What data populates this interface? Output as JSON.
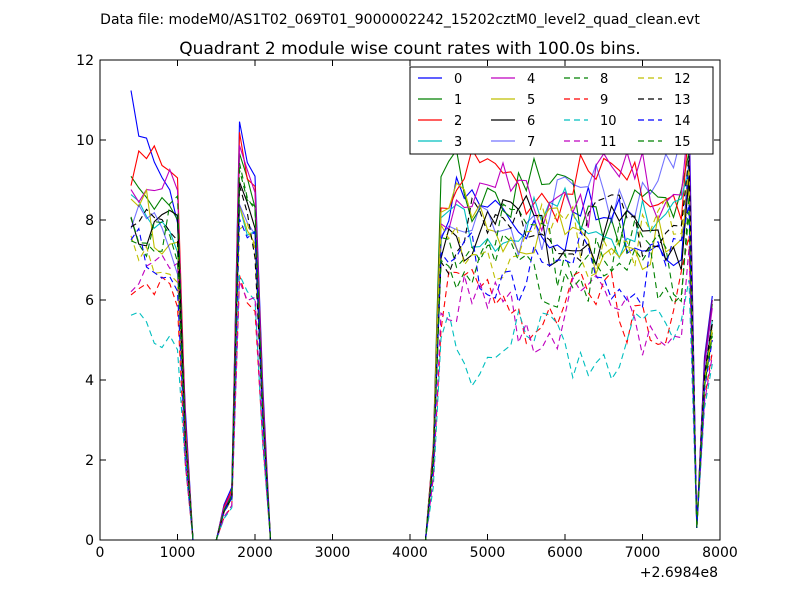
{
  "chart_data": {
    "type": "line",
    "header": "Data file: modeM0/AS1T02_069T01_9000002242_15202cztM0_level2_quad_clean.evt",
    "title": "Quadrant 2 module wise count rates with 100.0s bins.",
    "xlabel": "",
    "ylabel": "",
    "x_offset_label": "+2.6984e8",
    "xlim": [
      0,
      8000
    ],
    "ylim": [
      0,
      12
    ],
    "xticks": [
      0,
      1000,
      2000,
      3000,
      4000,
      5000,
      6000,
      7000,
      8000
    ],
    "yticks": [
      0,
      2,
      4,
      6,
      8,
      10,
      12
    ],
    "xtick_labels": [
      "0",
      "1000",
      "2000",
      "3000",
      "4000",
      "5000",
      "6000",
      "7000",
      "8000"
    ],
    "ytick_labels": [
      "0",
      "2",
      "4",
      "6",
      "8",
      "10",
      "12"
    ],
    "grid": false,
    "legend_position": "top-right",
    "segments": [
      {
        "x": [
          400,
          500,
          600,
          700,
          800,
          900,
          1000,
          1100,
          1200
        ],
        "zero_after": true
      },
      {
        "x": [
          1600,
          1700,
          1800,
          1900,
          2000,
          2100,
          2200
        ],
        "zero_before": true,
        "zero_after": true
      },
      {
        "x": [
          4200,
          4300,
          4400,
          4500,
          4600,
          4700,
          4800,
          4900,
          5000,
          5100,
          5200,
          5300,
          5400,
          5500,
          5600,
          5700,
          5800,
          5900,
          6000,
          6100,
          6200,
          6300,
          6400,
          6500,
          6600,
          6700,
          6800,
          6900,
          7000,
          7100,
          7200,
          7300,
          7400,
          7500,
          7600,
          7700,
          7800,
          7900
        ],
        "zero_before": true
      }
    ],
    "series": [
      {
        "name": "0",
        "color": "#0000ff",
        "dash": "solid",
        "opacity": 1,
        "levels": [
          10.9,
          8.2,
          8.8,
          8.3
        ],
        "peak2": 11.0,
        "end": 6.1
      },
      {
        "name": "1",
        "color": "#008000",
        "dash": "solid",
        "opacity": 1,
        "levels": [
          9.7,
          8.8,
          9.5,
          8.5
        ],
        "peak2": 9.6,
        "end": 5.9
      },
      {
        "name": "2",
        "color": "#ff0000",
        "dash": "solid",
        "opacity": 1,
        "levels": [
          10.0,
          9.0,
          9.3,
          9.2
        ],
        "peak2": 10.4,
        "end": 6.0
      },
      {
        "name": "3",
        "color": "#00bfbf",
        "dash": "solid",
        "opacity": 1,
        "levels": [
          8.7,
          8.3,
          8.5,
          8.1
        ],
        "peak2": 9.0,
        "end": 5.5
      },
      {
        "name": "4",
        "color": "#bf00bf",
        "dash": "solid",
        "opacity": 1,
        "levels": [
          9.3,
          8.8,
          9.1,
          9.4
        ],
        "peak2": 9.9,
        "end": 5.8
      },
      {
        "name": "5",
        "color": "#bfbf00",
        "dash": "solid",
        "opacity": 1,
        "levels": [
          8.8,
          7.9,
          8.6,
          7.6
        ],
        "peak2": 8.8,
        "end": 5.2
      },
      {
        "name": "6",
        "color": "#000000",
        "dash": "solid",
        "opacity": 1,
        "levels": [
          8.6,
          8.4,
          8.3,
          7.9
        ],
        "peak2": 9.1,
        "end": 5.4
      },
      {
        "name": "7",
        "color": "#0000ff",
        "dash": "solid",
        "opacity": 0.55,
        "levels": [
          8.1,
          7.8,
          8.0,
          9.8
        ],
        "peak2": 9.1,
        "end": 6.0
      },
      {
        "name": "8",
        "color": "#008000",
        "dash": "dashed",
        "opacity": 1,
        "levels": [
          8.5,
          8.3,
          8.2,
          7.4
        ],
        "peak2": 9.2,
        "end": 5.2
      },
      {
        "name": "9",
        "color": "#ff0000",
        "dash": "dashed",
        "opacity": 1,
        "levels": [
          6.3,
          6.6,
          6.3,
          6.4
        ],
        "peak2": 7.0,
        "end": 4.7
      },
      {
        "name": "10",
        "color": "#00bfbf",
        "dash": "dashed",
        "opacity": 1,
        "levels": [
          6.2,
          5.6,
          5.3,
          5.3
        ],
        "peak2": 6.7,
        "end": 4.4
      },
      {
        "name": "11",
        "color": "#bf00bf",
        "dash": "dashed",
        "opacity": 1,
        "levels": [
          6.6,
          6.8,
          6.2,
          6.1
        ],
        "peak2": 7.2,
        "end": 4.6
      },
      {
        "name": "12",
        "color": "#bfbf00",
        "dash": "dashed",
        "opacity": 1,
        "levels": [
          7.8,
          7.6,
          7.8,
          8.1
        ],
        "peak2": 8.5,
        "end": 5.3
      },
      {
        "name": "13",
        "color": "#000000",
        "dash": "dashed",
        "opacity": 1,
        "levels": [
          8.5,
          7.8,
          8.1,
          8.4
        ],
        "peak2": 8.8,
        "end": 5.5
      },
      {
        "name": "14",
        "color": "#0000ff",
        "dash": "dashed",
        "opacity": 1,
        "levels": [
          7.5,
          7.3,
          7.4,
          7.2
        ],
        "peak2": 8.7,
        "end": 5.0
      },
      {
        "name": "15",
        "color": "#008000",
        "dash": "dashed",
        "opacity": 1,
        "levels": [
          8.6,
          7.3,
          7.5,
          7.0
        ],
        "peak2": 9.3,
        "end": 5.1
      }
    ]
  }
}
